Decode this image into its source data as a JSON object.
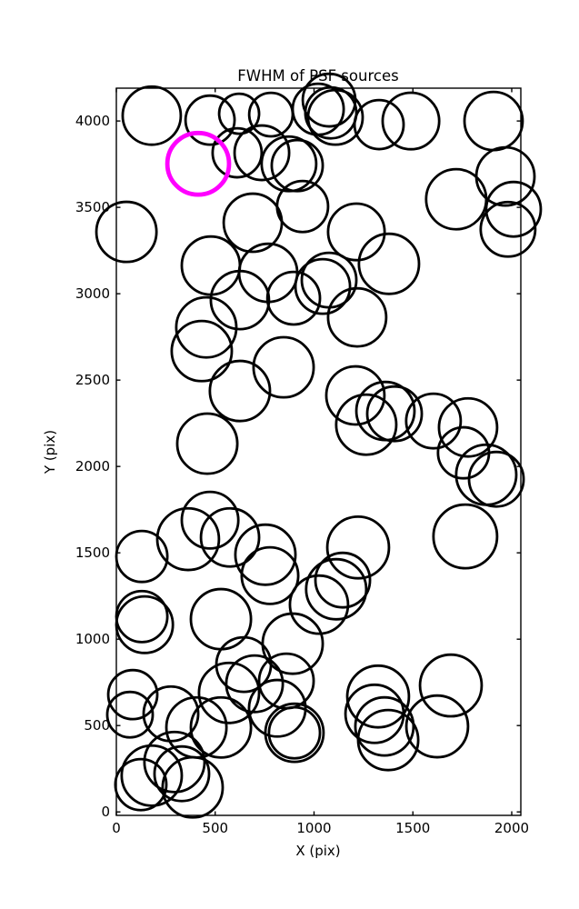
{
  "figure": {
    "background": "#ffffff",
    "axes_color": "#000000"
  },
  "chart_data": {
    "type": "scatter",
    "title": "FWHM of PSF sources",
    "xlabel": "X (pix)",
    "ylabel": "Y (pix)",
    "xlim": [
      0,
      2046
    ],
    "ylim": [
      -20,
      4190
    ],
    "x_ticks": [
      0,
      500,
      1000,
      1500,
      2000
    ],
    "y_ticks": [
      0,
      500,
      1000,
      1500,
      2000,
      2500,
      3000,
      3500,
      4000
    ],
    "grid": false,
    "legend": "none",
    "marker": "open-circle",
    "marker_color": "#000000",
    "highlight_color": "#ff00ff",
    "columns": [
      "x_pix",
      "y_pix",
      "radius_pix"
    ],
    "points": [
      [
        179,
        4031,
        147
      ],
      [
        474,
        4005,
        124
      ],
      [
        621,
        4042,
        101
      ],
      [
        782,
        4037,
        110
      ],
      [
        1021,
        4068,
        129
      ],
      [
        1076,
        4121,
        133
      ],
      [
        1085,
        4047,
        129
      ],
      [
        1108,
        4021,
        138
      ],
      [
        1329,
        3979,
        124
      ],
      [
        1490,
        4000,
        143
      ],
      [
        1908,
        4000,
        147
      ],
      [
        611,
        3816,
        124
      ],
      [
        736,
        3816,
        138
      ],
      [
        873,
        3752,
        138
      ],
      [
        915,
        3742,
        129
      ],
      [
        942,
        3505,
        129
      ],
      [
        690,
        3411,
        147
      ],
      [
        1968,
        3679,
        147
      ],
      [
        1719,
        3547,
        152
      ],
      [
        2009,
        3489,
        138
      ],
      [
        1981,
        3373,
        138
      ],
      [
        51,
        3358,
        152
      ],
      [
        1214,
        3358,
        143
      ],
      [
        1379,
        3173,
        152
      ],
      [
        478,
        3163,
        147
      ],
      [
        768,
        3121,
        147
      ],
      [
        625,
        2963,
        147
      ],
      [
        897,
        2974,
        133
      ],
      [
        1044,
        3042,
        138
      ],
      [
        1076,
        3079,
        138
      ],
      [
        1218,
        2863,
        147
      ],
      [
        455,
        2805,
        152
      ],
      [
        432,
        2668,
        152
      ],
      [
        625,
        2437,
        152
      ],
      [
        846,
        2574,
        152
      ],
      [
        1209,
        2411,
        147
      ],
      [
        1361,
        2321,
        147
      ],
      [
        1407,
        2305,
        138
      ],
      [
        1264,
        2242,
        152
      ],
      [
        1604,
        2263,
        138
      ],
      [
        1779,
        2226,
        147
      ],
      [
        1756,
        2079,
        129
      ],
      [
        1871,
        1952,
        152
      ],
      [
        1922,
        1926,
        138
      ],
      [
        460,
        2132,
        152
      ],
      [
        474,
        1689,
        143
      ],
      [
        363,
        1579,
        156
      ],
      [
        575,
        1589,
        147
      ],
      [
        754,
        1489,
        152
      ],
      [
        777,
        1368,
        143
      ],
      [
        129,
        1479,
        129
      ],
      [
        529,
        1116,
        152
      ],
      [
        129,
        1131,
        129
      ],
      [
        143,
        1084,
        143
      ],
      [
        1765,
        1595,
        161
      ],
      [
        1223,
        1531,
        156
      ],
      [
        1145,
        1342,
        138
      ],
      [
        1112,
        1289,
        152
      ],
      [
        1025,
        1200,
        147
      ],
      [
        83,
        679,
        124
      ],
      [
        69,
        563,
        115
      ],
      [
        276,
        568,
        138
      ],
      [
        405,
        489,
        152
      ],
      [
        529,
        489,
        152
      ],
      [
        294,
        289,
        152
      ],
      [
        179,
        210,
        152
      ],
      [
        124,
        158,
        129
      ],
      [
        331,
        221,
        138
      ],
      [
        386,
        142,
        152
      ],
      [
        570,
        689,
        152
      ],
      [
        644,
        853,
        138
      ],
      [
        699,
        742,
        143
      ],
      [
        860,
        758,
        138
      ],
      [
        814,
        600,
        143
      ],
      [
        892,
        974,
        152
      ],
      [
        901,
        458,
        147
      ],
      [
        901,
        458,
        129
      ],
      [
        1324,
        668,
        156
      ],
      [
        1306,
        568,
        147
      ],
      [
        1356,
        495,
        147
      ],
      [
        1375,
        416,
        152
      ],
      [
        1623,
        495,
        156
      ],
      [
        1692,
        732,
        156
      ]
    ],
    "highlighted_point": {
      "x": 414,
      "y": 3752,
      "radius_pix": 156,
      "color": "#ff00ff"
    }
  }
}
